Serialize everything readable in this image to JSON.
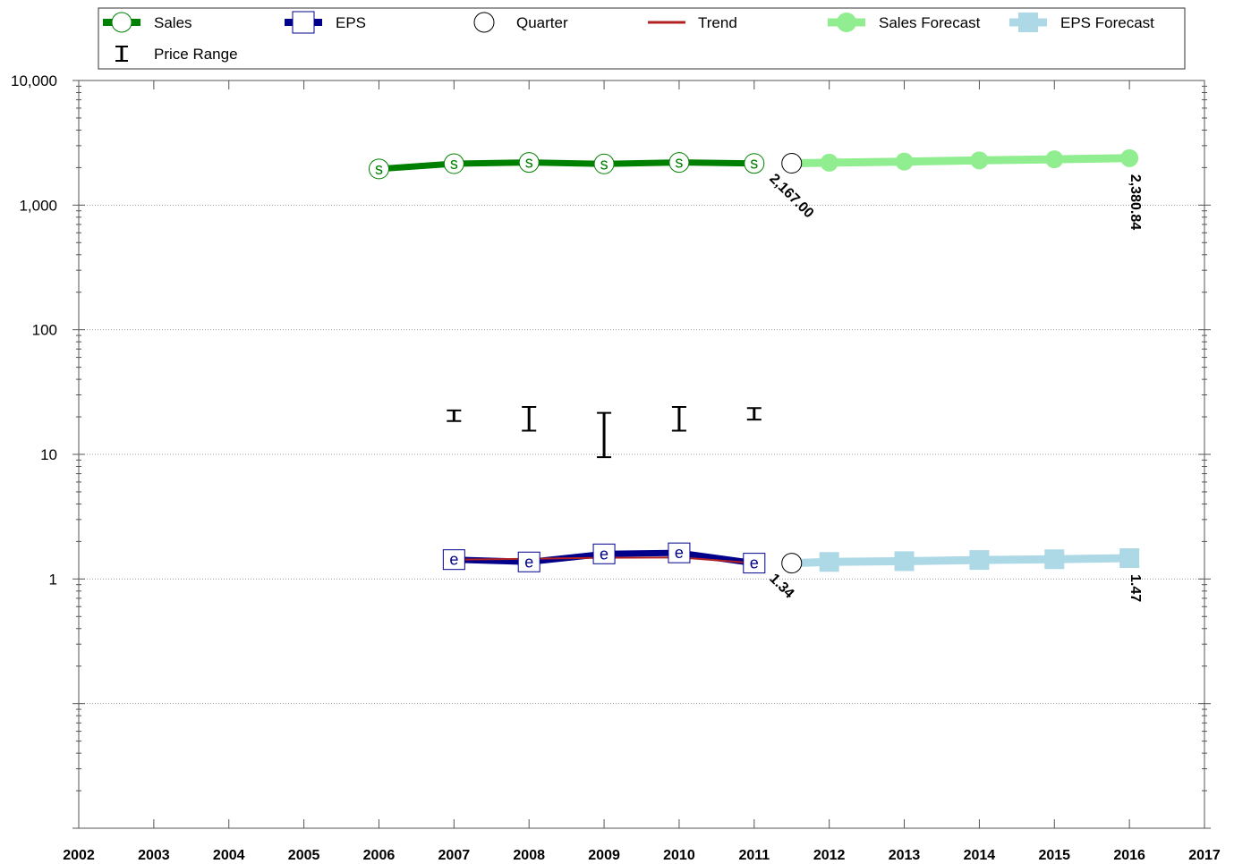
{
  "chart_data": {
    "type": "line",
    "title": "",
    "xlabel": "",
    "ylabel": "",
    "y_scale": "log",
    "ylim": [
      0.01,
      10000
    ],
    "xlim": [
      2002,
      2017
    ],
    "x_ticks": [
      2002,
      2003,
      2004,
      2005,
      2006,
      2007,
      2008,
      2009,
      2010,
      2011,
      2012,
      2013,
      2014,
      2015,
      2016,
      2017
    ],
    "y_ticks": [
      {
        "value": 10000,
        "label": "10,000"
      },
      {
        "value": 1000,
        "label": "1,000"
      },
      {
        "value": 100,
        "label": "100"
      },
      {
        "value": 10,
        "label": "10"
      },
      {
        "value": 1,
        "label": "1"
      }
    ],
    "y_gridlines": [
      1000,
      100,
      10,
      1,
      0.1
    ],
    "legend_position": "top",
    "legend": [
      {
        "label": "Sales",
        "symbol": "sales"
      },
      {
        "label": "EPS",
        "symbol": "eps"
      },
      {
        "label": "Quarter",
        "symbol": "quarter"
      },
      {
        "label": "Trend",
        "symbol": "trend"
      },
      {
        "label": "Sales Forecast",
        "symbol": "sales-forecast"
      },
      {
        "label": "EPS Forecast",
        "symbol": "eps-forecast"
      },
      {
        "label": "Price Range",
        "symbol": "price-range"
      }
    ],
    "colors": {
      "sales": "#008000",
      "eps": "#00008b",
      "trend": "#b22222",
      "sales_forecast": "#90ee90",
      "eps_forecast": "#add8e6",
      "price_range": "#000000"
    },
    "sales": {
      "marker_label": "s",
      "points": [
        {
          "x": 2006,
          "y": 1950
        },
        {
          "x": 2007,
          "y": 2150
        },
        {
          "x": 2008,
          "y": 2200
        },
        {
          "x": 2009,
          "y": 2140
        },
        {
          "x": 2010,
          "y": 2200
        },
        {
          "x": 2011,
          "y": 2160
        }
      ]
    },
    "eps": {
      "marker_label": "e",
      "points": [
        {
          "x": 2007,
          "y": 1.43
        },
        {
          "x": 2008,
          "y": 1.37
        },
        {
          "x": 2009,
          "y": 1.59
        },
        {
          "x": 2010,
          "y": 1.62
        },
        {
          "x": 2011,
          "y": 1.34
        }
      ]
    },
    "eps_trend": [
      {
        "x": 2007,
        "y": 1.43
      },
      {
        "x": 2008,
        "y": 1.45
      },
      {
        "x": 2009,
        "y": 1.48
      },
      {
        "x": 2010,
        "y": 1.49
      },
      {
        "x": 2011,
        "y": 1.34
      }
    ],
    "quarter": [
      {
        "x": 2011.5,
        "y": 2167.0
      },
      {
        "x": 2011.5,
        "y": 1.34
      }
    ],
    "sales_forecast": [
      {
        "x": 2011.5,
        "y": 2167.0
      },
      {
        "x": 2012,
        "y": 2190
      },
      {
        "x": 2013,
        "y": 2235
      },
      {
        "x": 2014,
        "y": 2285
      },
      {
        "x": 2015,
        "y": 2330
      },
      {
        "x": 2016,
        "y": 2380.84
      }
    ],
    "eps_forecast": [
      {
        "x": 2011.5,
        "y": 1.34
      },
      {
        "x": 2012,
        "y": 1.37
      },
      {
        "x": 2013,
        "y": 1.39
      },
      {
        "x": 2014,
        "y": 1.42
      },
      {
        "x": 2015,
        "y": 1.44
      },
      {
        "x": 2016,
        "y": 1.47
      }
    ],
    "price_range": [
      {
        "x": 2007,
        "low": 18.5,
        "high": 22.5
      },
      {
        "x": 2008,
        "low": 15.5,
        "high": 24
      },
      {
        "x": 2009,
        "low": 9.5,
        "high": 21.5
      },
      {
        "x": 2010,
        "low": 15.5,
        "high": 24
      },
      {
        "x": 2011,
        "low": 19,
        "high": 23.5
      }
    ],
    "annotations": [
      {
        "text": "2,167.00",
        "x": 2011.1,
        "y": 2167.0,
        "rotate": 45
      },
      {
        "text": "2,380.84",
        "x": 2016,
        "y": 2380.84,
        "rotate": 90
      },
      {
        "text": "1.34",
        "x": 2011.1,
        "y": 1.34,
        "rotate": 45
      },
      {
        "text": "1.47",
        "x": 2016,
        "y": 1.47,
        "rotate": 90
      }
    ]
  }
}
